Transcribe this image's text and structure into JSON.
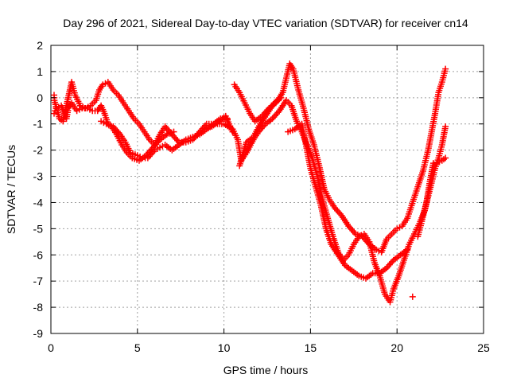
{
  "chart_data": {
    "type": "scatter",
    "title": "Day 296 of 2021, Sidereal Day-to-day VTEC variation (SDTVAR) for receiver cn14",
    "xlabel": "GPS time / hours",
    "ylabel": "SDTVAR / TECUs",
    "xlim": [
      0,
      25
    ],
    "ylim": [
      -9,
      2
    ],
    "xticks": [
      0,
      5,
      10,
      15,
      20,
      25
    ],
    "yticks": [
      2,
      1,
      0,
      -1,
      -2,
      -3,
      -4,
      -5,
      -6,
      -7,
      -8,
      -9
    ],
    "grid": true,
    "marker": "+",
    "color": "#ff0000",
    "series": [
      {
        "points": [
          [
            0.0,
            -0.6
          ],
          [
            0.3,
            -0.4
          ],
          [
            0.6,
            -0.3
          ],
          [
            0.9,
            -0.8
          ],
          [
            1.0,
            -0.4
          ],
          [
            1.2,
            -0.2
          ],
          [
            1.5,
            -0.5
          ],
          [
            1.8,
            -0.4
          ],
          [
            2.1,
            -0.4
          ],
          [
            2.4,
            -0.5
          ],
          [
            2.7,
            -0.5
          ],
          [
            2.9,
            -0.3
          ],
          [
            3.1,
            -0.6
          ],
          [
            3.3,
            -1.0
          ],
          [
            3.6,
            -1.1
          ],
          [
            4.0,
            -1.4
          ],
          [
            4.3,
            -1.7
          ],
          [
            4.6,
            -2.1
          ],
          [
            5.0,
            -2.2
          ],
          [
            5.3,
            -2.3
          ],
          [
            5.6,
            -2.3
          ],
          [
            6.0,
            -2.0
          ],
          [
            6.3,
            -1.9
          ],
          [
            6.6,
            -1.8
          ],
          [
            7.0,
            -2.0
          ],
          [
            7.4,
            -1.8
          ],
          [
            7.8,
            -1.6
          ],
          [
            8.2,
            -1.5
          ],
          [
            8.6,
            -1.4
          ],
          [
            9.0,
            -1.2
          ],
          [
            9.5,
            -1.0
          ],
          [
            10.0,
            -1.0
          ],
          [
            10.5,
            -1.2
          ],
          [
            10.8,
            -1.6
          ],
          [
            11.0,
            -2.4
          ],
          [
            11.3,
            -2.1
          ],
          [
            11.7,
            -1.6
          ],
          [
            12.0,
            -1.3
          ],
          [
            12.4,
            -1.0
          ],
          [
            12.8,
            -0.8
          ],
          [
            13.2,
            -0.5
          ],
          [
            13.6,
            -0.1
          ],
          [
            13.9,
            -0.3
          ],
          [
            14.2,
            -0.9
          ],
          [
            14.5,
            -1.3
          ],
          [
            14.8,
            -1.8
          ],
          [
            15.1,
            -2.3
          ],
          [
            15.4,
            -3.0
          ],
          [
            15.7,
            -3.9
          ],
          [
            16.0,
            -4.6
          ],
          [
            16.3,
            -5.3
          ],
          [
            16.6,
            -5.9
          ],
          [
            16.9,
            -6.2
          ],
          [
            17.2,
            -6.0
          ],
          [
            17.5,
            -5.6
          ],
          [
            17.8,
            -5.3
          ],
          [
            18.1,
            -5.2
          ],
          [
            18.4,
            -5.5
          ],
          [
            18.7,
            -6.3
          ],
          [
            19.0,
            -6.8
          ],
          [
            19.3,
            -7.5
          ],
          [
            19.6,
            -7.8
          ],
          [
            19.8,
            -7.3
          ],
          [
            20.1,
            -6.8
          ],
          [
            20.4,
            -6.2
          ],
          [
            20.7,
            -5.6
          ],
          [
            21.0,
            -5.2
          ],
          [
            21.3,
            -4.8
          ],
          [
            21.6,
            -4.3
          ],
          [
            21.9,
            -3.5
          ],
          [
            22.2,
            -2.7
          ],
          [
            22.4,
            -2.3
          ],
          [
            22.6,
            -1.8
          ],
          [
            22.8,
            -1.1
          ]
        ]
      },
      {
        "points": [
          [
            0.0,
            0.1
          ],
          [
            0.2,
            -0.1
          ],
          [
            0.5,
            -0.8
          ],
          [
            0.7,
            -0.9
          ],
          [
            1.0,
            0.0
          ],
          [
            1.2,
            0.6
          ],
          [
            1.4,
            0.1
          ],
          [
            1.7,
            -0.3
          ],
          [
            2.0,
            -0.4
          ],
          [
            2.3,
            -0.3
          ],
          [
            2.6,
            -0.1
          ],
          [
            2.8,
            0.3
          ],
          [
            3.0,
            0.5
          ],
          [
            3.3,
            0.6
          ],
          [
            3.6,
            0.3
          ],
          [
            3.9,
            0.1
          ],
          [
            4.2,
            -0.2
          ],
          [
            4.5,
            -0.5
          ],
          [
            4.8,
            -0.8
          ],
          [
            5.1,
            -1.0
          ],
          [
            5.4,
            -1.3
          ],
          [
            5.7,
            -1.6
          ],
          [
            6.0,
            -1.8
          ],
          [
            6.3,
            -1.4
          ],
          [
            6.6,
            -1.1
          ],
          [
            7.0,
            -1.4
          ],
          [
            7.4,
            -1.7
          ],
          [
            7.8,
            -1.7
          ],
          [
            8.2,
            -1.6
          ],
          [
            8.6,
            -1.3
          ],
          [
            9.0,
            -1.0
          ],
          [
            9.4,
            -1.0
          ],
          [
            9.8,
            -0.8
          ],
          [
            10.2,
            -0.8
          ],
          [
            10.6,
            0.5
          ],
          [
            10.9,
            0.2
          ],
          [
            11.2,
            -0.2
          ],
          [
            11.5,
            -0.6
          ],
          [
            11.8,
            -0.9
          ],
          [
            12.2,
            -0.7
          ],
          [
            12.6,
            -0.4
          ],
          [
            13.0,
            -0.2
          ],
          [
            13.4,
            0.2
          ],
          [
            13.8,
            1.3
          ],
          [
            14.0,
            1.1
          ],
          [
            14.3,
            0.3
          ],
          [
            14.6,
            -0.4
          ],
          [
            14.9,
            -1.2
          ],
          [
            15.2,
            -1.8
          ],
          [
            15.5,
            -2.6
          ],
          [
            15.8,
            -3.5
          ],
          [
            16.1,
            -3.9
          ],
          [
            16.4,
            -4.2
          ],
          [
            16.8,
            -4.5
          ],
          [
            17.2,
            -4.9
          ],
          [
            17.6,
            -5.2
          ],
          [
            18.0,
            -5.3
          ],
          [
            18.4,
            -5.6
          ],
          [
            18.8,
            -5.8
          ],
          [
            19.1,
            -5.9
          ],
          [
            19.4,
            -5.4
          ],
          [
            19.7,
            -5.2
          ],
          [
            20.0,
            -5.0
          ],
          [
            20.3,
            -4.9
          ],
          [
            20.6,
            -4.6
          ],
          [
            20.8,
            -4.2
          ],
          [
            21.0,
            -3.8
          ],
          [
            21.2,
            -3.4
          ],
          [
            21.5,
            -2.8
          ],
          [
            21.8,
            -2.0
          ],
          [
            22.0,
            -1.3
          ],
          [
            22.2,
            -0.6
          ],
          [
            22.4,
            0.2
          ],
          [
            22.6,
            0.6
          ],
          [
            22.8,
            1.1
          ]
        ]
      },
      {
        "points": [
          [
            2.9,
            -0.9
          ],
          [
            3.2,
            -1.0
          ],
          [
            3.5,
            -1.1
          ],
          [
            3.8,
            -1.4
          ],
          [
            4.1,
            -1.8
          ],
          [
            4.4,
            -2.1
          ],
          [
            4.7,
            -2.3
          ],
          [
            5.1,
            -2.4
          ],
          [
            5.5,
            -2.2
          ],
          [
            5.9,
            -1.9
          ],
          [
            6.3,
            -1.6
          ],
          [
            6.7,
            -1.4
          ],
          [
            7.1,
            -1.3
          ],
          [
            9.3,
            -1.1
          ],
          [
            9.7,
            -0.9
          ],
          [
            10.1,
            -0.7
          ],
          [
            10.5,
            -1.3
          ],
          [
            10.9,
            -2.6
          ],
          [
            11.3,
            -1.7
          ],
          [
            11.7,
            -1.5
          ],
          [
            12.1,
            -1.0
          ],
          [
            12.5,
            -0.6
          ],
          [
            12.9,
            -0.2
          ],
          [
            13.3,
            0.0
          ],
          [
            13.7,
            -1.3
          ],
          [
            14.1,
            -1.2
          ],
          [
            14.5,
            -1.0
          ],
          [
            14.8,
            -2.0
          ],
          [
            15.0,
            -2.7
          ],
          [
            15.3,
            -3.4
          ],
          [
            15.6,
            -4.1
          ],
          [
            15.9,
            -5.0
          ],
          [
            16.2,
            -5.6
          ],
          [
            16.6,
            -6.0
          ],
          [
            17.0,
            -6.4
          ],
          [
            17.4,
            -6.6
          ],
          [
            17.8,
            -6.8
          ],
          [
            18.2,
            -6.9
          ],
          [
            18.6,
            -6.7
          ],
          [
            19.0,
            -6.7
          ],
          [
            19.4,
            -6.5
          ],
          [
            19.8,
            -6.2
          ],
          [
            20.2,
            -6.0
          ],
          [
            20.6,
            -5.8
          ],
          [
            20.9,
            -7.6
          ],
          [
            21.2,
            -5.3
          ],
          [
            21.4,
            -4.8
          ],
          [
            21.7,
            -4.0
          ],
          [
            21.9,
            -3.2
          ],
          [
            22.1,
            -2.5
          ],
          [
            22.3,
            -2.5
          ],
          [
            22.6,
            -2.4
          ],
          [
            22.8,
            -2.3
          ]
        ]
      }
    ]
  }
}
